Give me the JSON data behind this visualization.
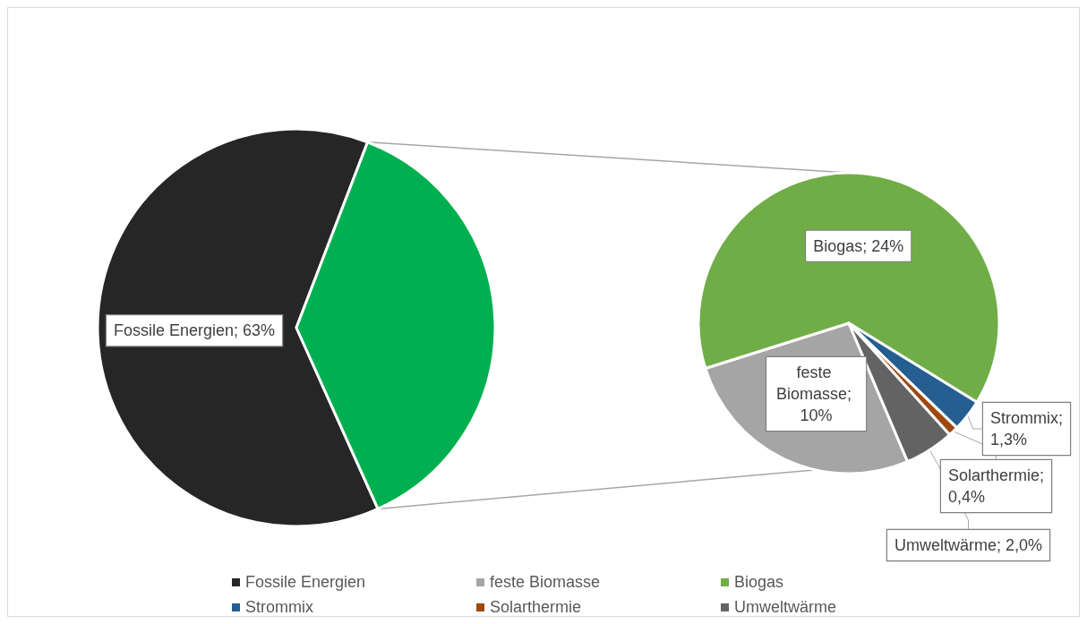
{
  "chart_data": [
    {
      "type": "pie",
      "categories": [
        "Fossile Energien",
        null
      ],
      "values": [
        63,
        37.7
      ],
      "colors": [
        "#262626",
        "#00b050"
      ],
      "value_labels": [
        "Fossile Energien; 63%",
        null
      ],
      "legend": "bottom"
    },
    {
      "type": "pie",
      "categories": [
        "feste Biomasse",
        "Biogas",
        "Strommix",
        "Solarthermie",
        "Umweltwärme"
      ],
      "values": [
        10,
        24,
        1.3,
        0.4,
        2.0
      ],
      "colors": [
        "#a5a5a5",
        "#70ad47",
        "#255e91",
        "#9e480e",
        "#636363"
      ],
      "value_labels": [
        "feste Biomasse; 10%",
        "Biogas; 24%",
        "Strommix; 1,3%",
        "Solarthermie; 0,4%",
        "Umweltwärme; 2,0%"
      ],
      "legend": "bottom"
    }
  ]
}
